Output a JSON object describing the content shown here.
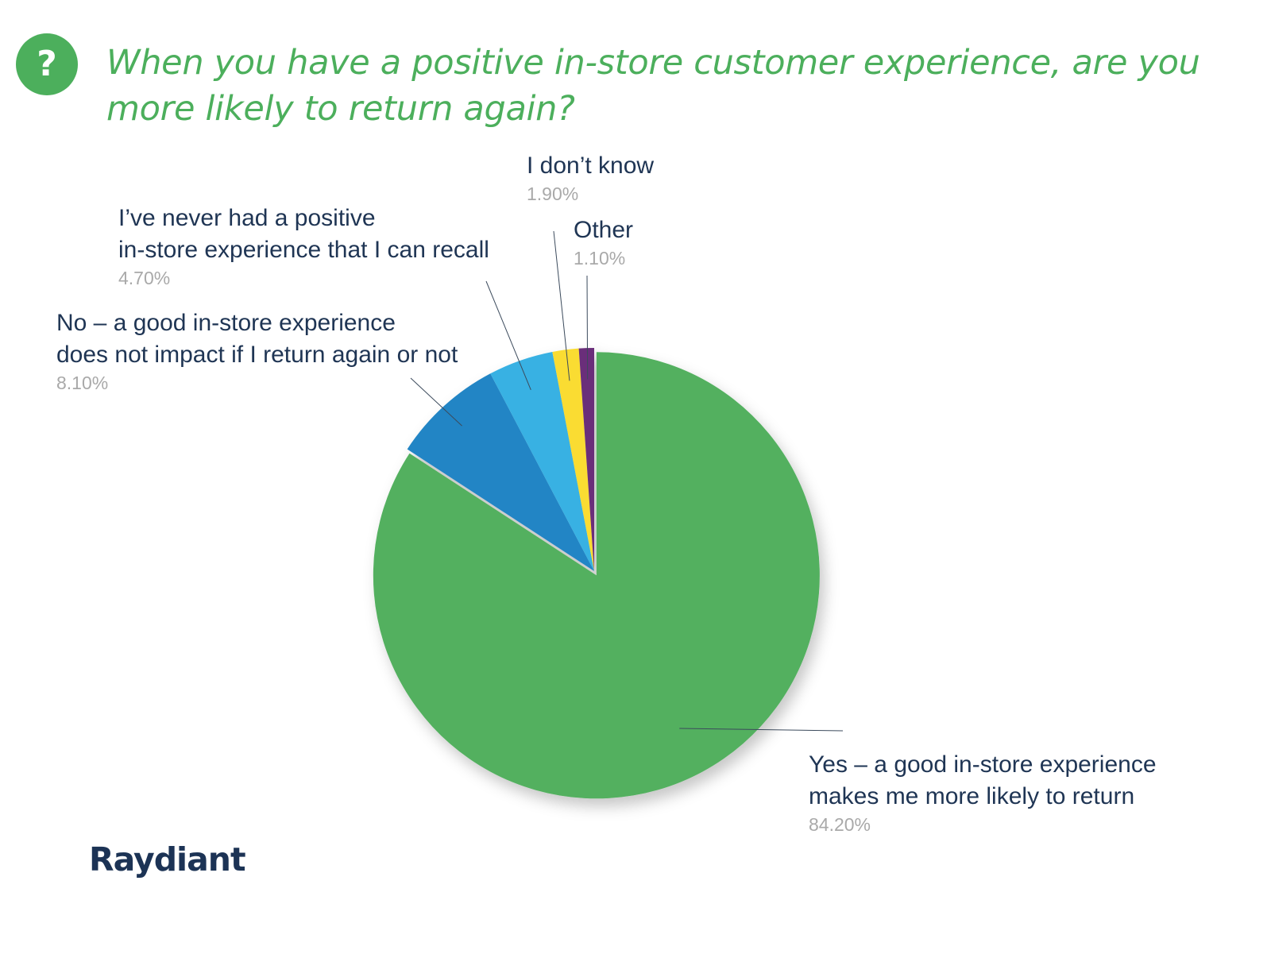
{
  "header": {
    "badge_symbol": "?",
    "title": "When you have a positive in-store customer experience, are you more likely to return again?"
  },
  "chart_data": {
    "type": "pie",
    "title": "When you have a positive in-store customer experience, are you more likely to return again?",
    "slices": [
      {
        "lines": [
          "Yes – a good in-store experience",
          "makes me more likely to return"
        ],
        "value": 84.2,
        "value_label": "84.20%",
        "color": "#52b05e",
        "exploded": true
      },
      {
        "lines": [
          "No – a good in-store experience",
          "does not impact if I return again or not"
        ],
        "value": 8.1,
        "value_label": "8.10%",
        "color": "#2185c5",
        "exploded": false
      },
      {
        "lines": [
          "I’ve never had a positive",
          "in-store experience that I can recall"
        ],
        "value": 4.7,
        "value_label": "4.70%",
        "color": "#39b1e3",
        "exploded": false
      },
      {
        "lines": [
          "I don’t know"
        ],
        "value": 1.9,
        "value_label": "1.90%",
        "color": "#fadc31",
        "exploded": false
      },
      {
        "lines": [
          "Other"
        ],
        "value": 1.1,
        "value_label": "1.10%",
        "color": "#6b2f7a",
        "exploded": false
      }
    ],
    "start_angle": "12 o'clock",
    "direction": "clockwise",
    "legend": "none – callout labels with leader lines"
  },
  "colors": {
    "title": "#4caf5c",
    "label_text": "#1f3554",
    "percent_text": "#a9a9a9",
    "leader_line": "#3b4a5c",
    "brand": "#1c3355"
  },
  "footer": {
    "brand": "Raydiant"
  }
}
